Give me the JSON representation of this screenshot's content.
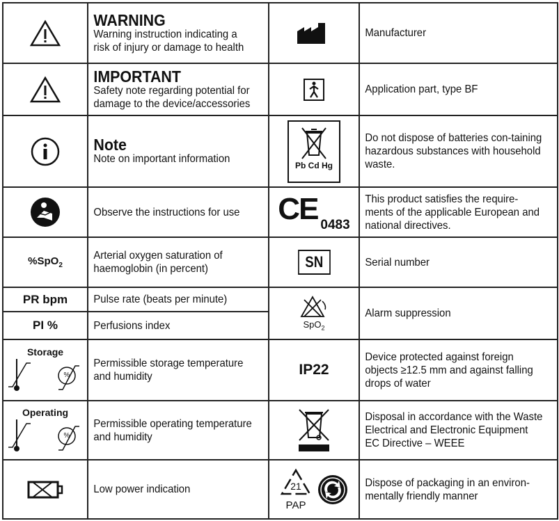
{
  "rows": {
    "warning": {
      "title": "WARNING",
      "desc": "Warning instruction indicating a risk of injury or damage to health"
    },
    "manufacturer": {
      "desc": "Manufacturer"
    },
    "important": {
      "title": "IMPORTANT",
      "desc": "Safety note regarding potential for damage to the device/accessories"
    },
    "bf": {
      "desc": "Application part, type BF"
    },
    "note": {
      "title": "Note",
      "desc": "Note on important information"
    },
    "batteries": {
      "symbol": "Pb Cd Hg",
      "desc": "Do not dispose of batteries con-taining hazardous substances with household waste."
    },
    "instructions": {
      "desc": "Observe the instructions for use"
    },
    "ce": {
      "number": "0483",
      "desc": "This product satisfies the require-ments of the applicable European and national directives."
    },
    "spo2": {
      "symbol": "%SpO",
      "sub": "2",
      "desc": "Arterial oxygen saturation of haemoglobin (in percent)"
    },
    "sn": {
      "symbol": "SN",
      "desc": "Serial number"
    },
    "pr": {
      "symbol": "PR bpm",
      "desc": "Pulse rate (beats per minute)"
    },
    "pi": {
      "symbol": "PI %",
      "desc": "Perfusions index"
    },
    "alarm": {
      "symbol": "SpO",
      "sub": "2",
      "desc": "Alarm suppression"
    },
    "storage": {
      "symbol": "Storage",
      "desc": "Permissible storage temperature and humidity"
    },
    "ip": {
      "symbol": "IP22",
      "desc": "Device protected against foreign objects ≥12.5 mm and against falling drops of water"
    },
    "operating": {
      "symbol": "Operating",
      "desc": "Permissible operating temperature and humidity"
    },
    "weee": {
      "desc": "Disposal in accordance with the Waste Electrical and Electronic Equipment EC Directive – WEEE"
    },
    "lowpower": {
      "desc": "Low power indication"
    },
    "packaging": {
      "number": "21",
      "symbol": "PAP",
      "desc": "Dispose of packaging in an environ-mentally friendly manner"
    }
  }
}
